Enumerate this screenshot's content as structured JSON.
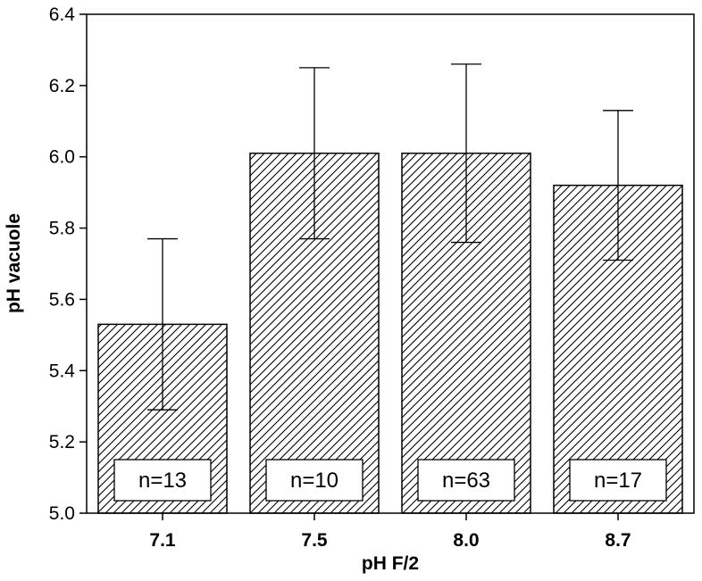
{
  "chart_data": {
    "type": "bar",
    "title": "",
    "xlabel": "pH F/2",
    "ylabel": "pH vacuole",
    "categories": [
      "7.1",
      "7.5",
      "8.0",
      "8.7"
    ],
    "values": [
      5.53,
      6.01,
      6.01,
      5.92
    ],
    "error_upper": [
      5.77,
      6.25,
      6.26,
      6.13
    ],
    "error_lower": [
      5.29,
      5.77,
      5.76,
      5.71
    ],
    "sample_labels": [
      "n=13",
      "n=10",
      "n=63",
      "n=17"
    ],
    "ylim": [
      5.0,
      6.4
    ],
    "yticks": [
      "5.0",
      "5.2",
      "5.4",
      "5.6",
      "5.8",
      "6.0",
      "6.2",
      "6.4"
    ],
    "bar_fill": "diagonal-hatch",
    "bar_color": "#000000",
    "grid": false,
    "legend": "none"
  }
}
